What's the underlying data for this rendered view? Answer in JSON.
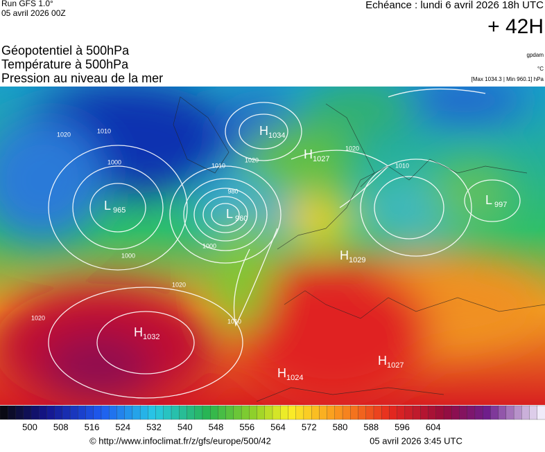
{
  "header": {
    "run": "Run GFS 1.0°",
    "run_date": "05 avril 2026 00Z",
    "echeance": "Echéance : lundi 6 avril 2026 18h UTC",
    "lead": "+ 42H"
  },
  "legend": {
    "lines": [
      "Géopotentiel à 500hPa",
      "Température à 500hPa",
      "Pression au niveau de la mer"
    ],
    "units": [
      "gpdam",
      "°C",
      "[Max 1034.3 | Min 960.1] hPa"
    ]
  },
  "centers": [
    {
      "kind": "H",
      "value": 1034
    },
    {
      "kind": "H",
      "value": 1027
    },
    {
      "kind": "L",
      "value": 965
    },
    {
      "kind": "L",
      "value": 960
    },
    {
      "kind": "L",
      "value": 997
    },
    {
      "kind": "H",
      "value": 1029
    },
    {
      "kind": "H",
      "value": 1032
    },
    {
      "kind": "H",
      "value": 1024
    },
    {
      "kind": "H",
      "value": 1027
    }
  ],
  "isobar_labels": [
    1020,
    1010,
    1000,
    980,
    1000,
    1010,
    1020,
    1010,
    1020,
    1000,
    1020,
    1010,
    1020
  ],
  "colorbar": {
    "labels": [
      500,
      508,
      516,
      524,
      532,
      540,
      548,
      556,
      564,
      572,
      580,
      588,
      596,
      604
    ]
  },
  "footer": {
    "url": "© http://www.infoclimat.fr/z/gfs/europe/500/42",
    "date": "05 avril 2026  3:45 UTC"
  }
}
